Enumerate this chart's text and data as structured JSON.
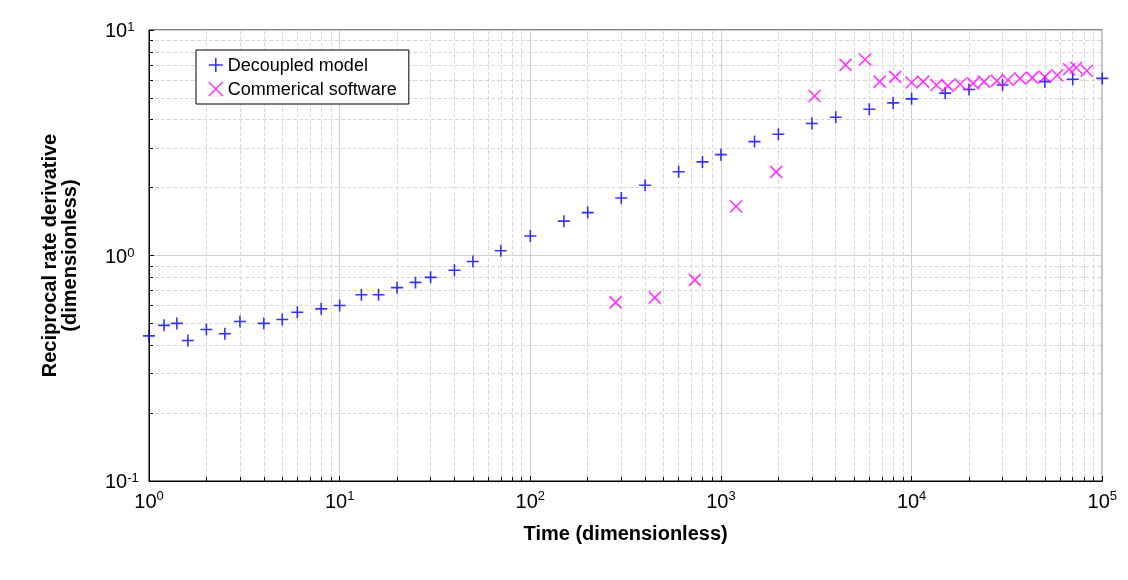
{
  "chart_data": {
    "type": "scatter",
    "xlabel": "Time (dimensionless)",
    "ylabel": "Reciprocal rate derivative\n(dimensionless)",
    "log": "xy",
    "grid": true,
    "legend": "top left",
    "xlim": [
      1,
      100000
    ],
    "ylim": [
      0.1,
      10
    ],
    "xticks": [
      {
        "value": 1,
        "label": "10$^{0}$"
      },
      {
        "value": 10,
        "label": "10$^{1}$"
      },
      {
        "value": 100,
        "label": "10$^{2}$"
      },
      {
        "value": 1000,
        "label": "10$^{3}$"
      },
      {
        "value": 10000,
        "label": "10$^{4}$"
      },
      {
        "value": 100000,
        "label": "10$^{5}$"
      }
    ],
    "yticks": [
      {
        "value": 0.1,
        "label": "10$^{-1}$"
      },
      {
        "value": 1,
        "label": "10$^{0}$"
      },
      {
        "value": 10,
        "label": "10$^{1}$"
      }
    ],
    "series": [
      {
        "name": "Decoupled model",
        "color": "#0000ff",
        "marker": "plus",
        "x": [
          1,
          1.2,
          1.4,
          1.6,
          2,
          2.5,
          3,
          4,
          5,
          6,
          8,
          10,
          13,
          16,
          20,
          25,
          30,
          40,
          50,
          70,
          100,
          150,
          200,
          300,
          400,
          600,
          800,
          1000,
          1500,
          2000,
          3000,
          4000,
          6000,
          8000,
          10000,
          15000,
          20000,
          30000,
          50000,
          70000,
          100000
        ],
        "values": [
          0.44,
          0.49,
          0.5,
          0.42,
          0.47,
          0.45,
          0.51,
          0.5,
          0.52,
          0.56,
          0.58,
          0.6,
          0.67,
          0.67,
          0.72,
          0.76,
          0.8,
          0.86,
          0.94,
          1.05,
          1.22,
          1.42,
          1.55,
          1.8,
          2.05,
          2.35,
          2.6,
          2.8,
          3.2,
          3.45,
          3.85,
          4.1,
          4.45,
          4.75,
          4.95,
          5.25,
          5.45,
          5.7,
          5.9,
          6.05,
          6.1
        ]
      },
      {
        "name": "Commerical software",
        "color": "#ff00ff",
        "marker": "cross",
        "x": [
          280,
          450,
          730,
          1200,
          1950,
          3100,
          4500,
          5700,
          6800,
          8200,
          10000,
          11500,
          13500,
          15500,
          18000,
          21000,
          24000,
          28000,
          32000,
          37000,
          43000,
          50000,
          58000,
          67000,
          73000,
          83000
        ],
        "values": [
          0.62,
          0.65,
          0.78,
          1.65,
          2.35,
          5.1,
          7.0,
          7.4,
          5.9,
          6.2,
          5.85,
          5.9,
          5.7,
          5.65,
          5.75,
          5.8,
          5.9,
          5.95,
          6.0,
          6.1,
          6.15,
          6.2,
          6.3,
          6.7,
          6.8,
          6.6
        ]
      }
    ]
  }
}
